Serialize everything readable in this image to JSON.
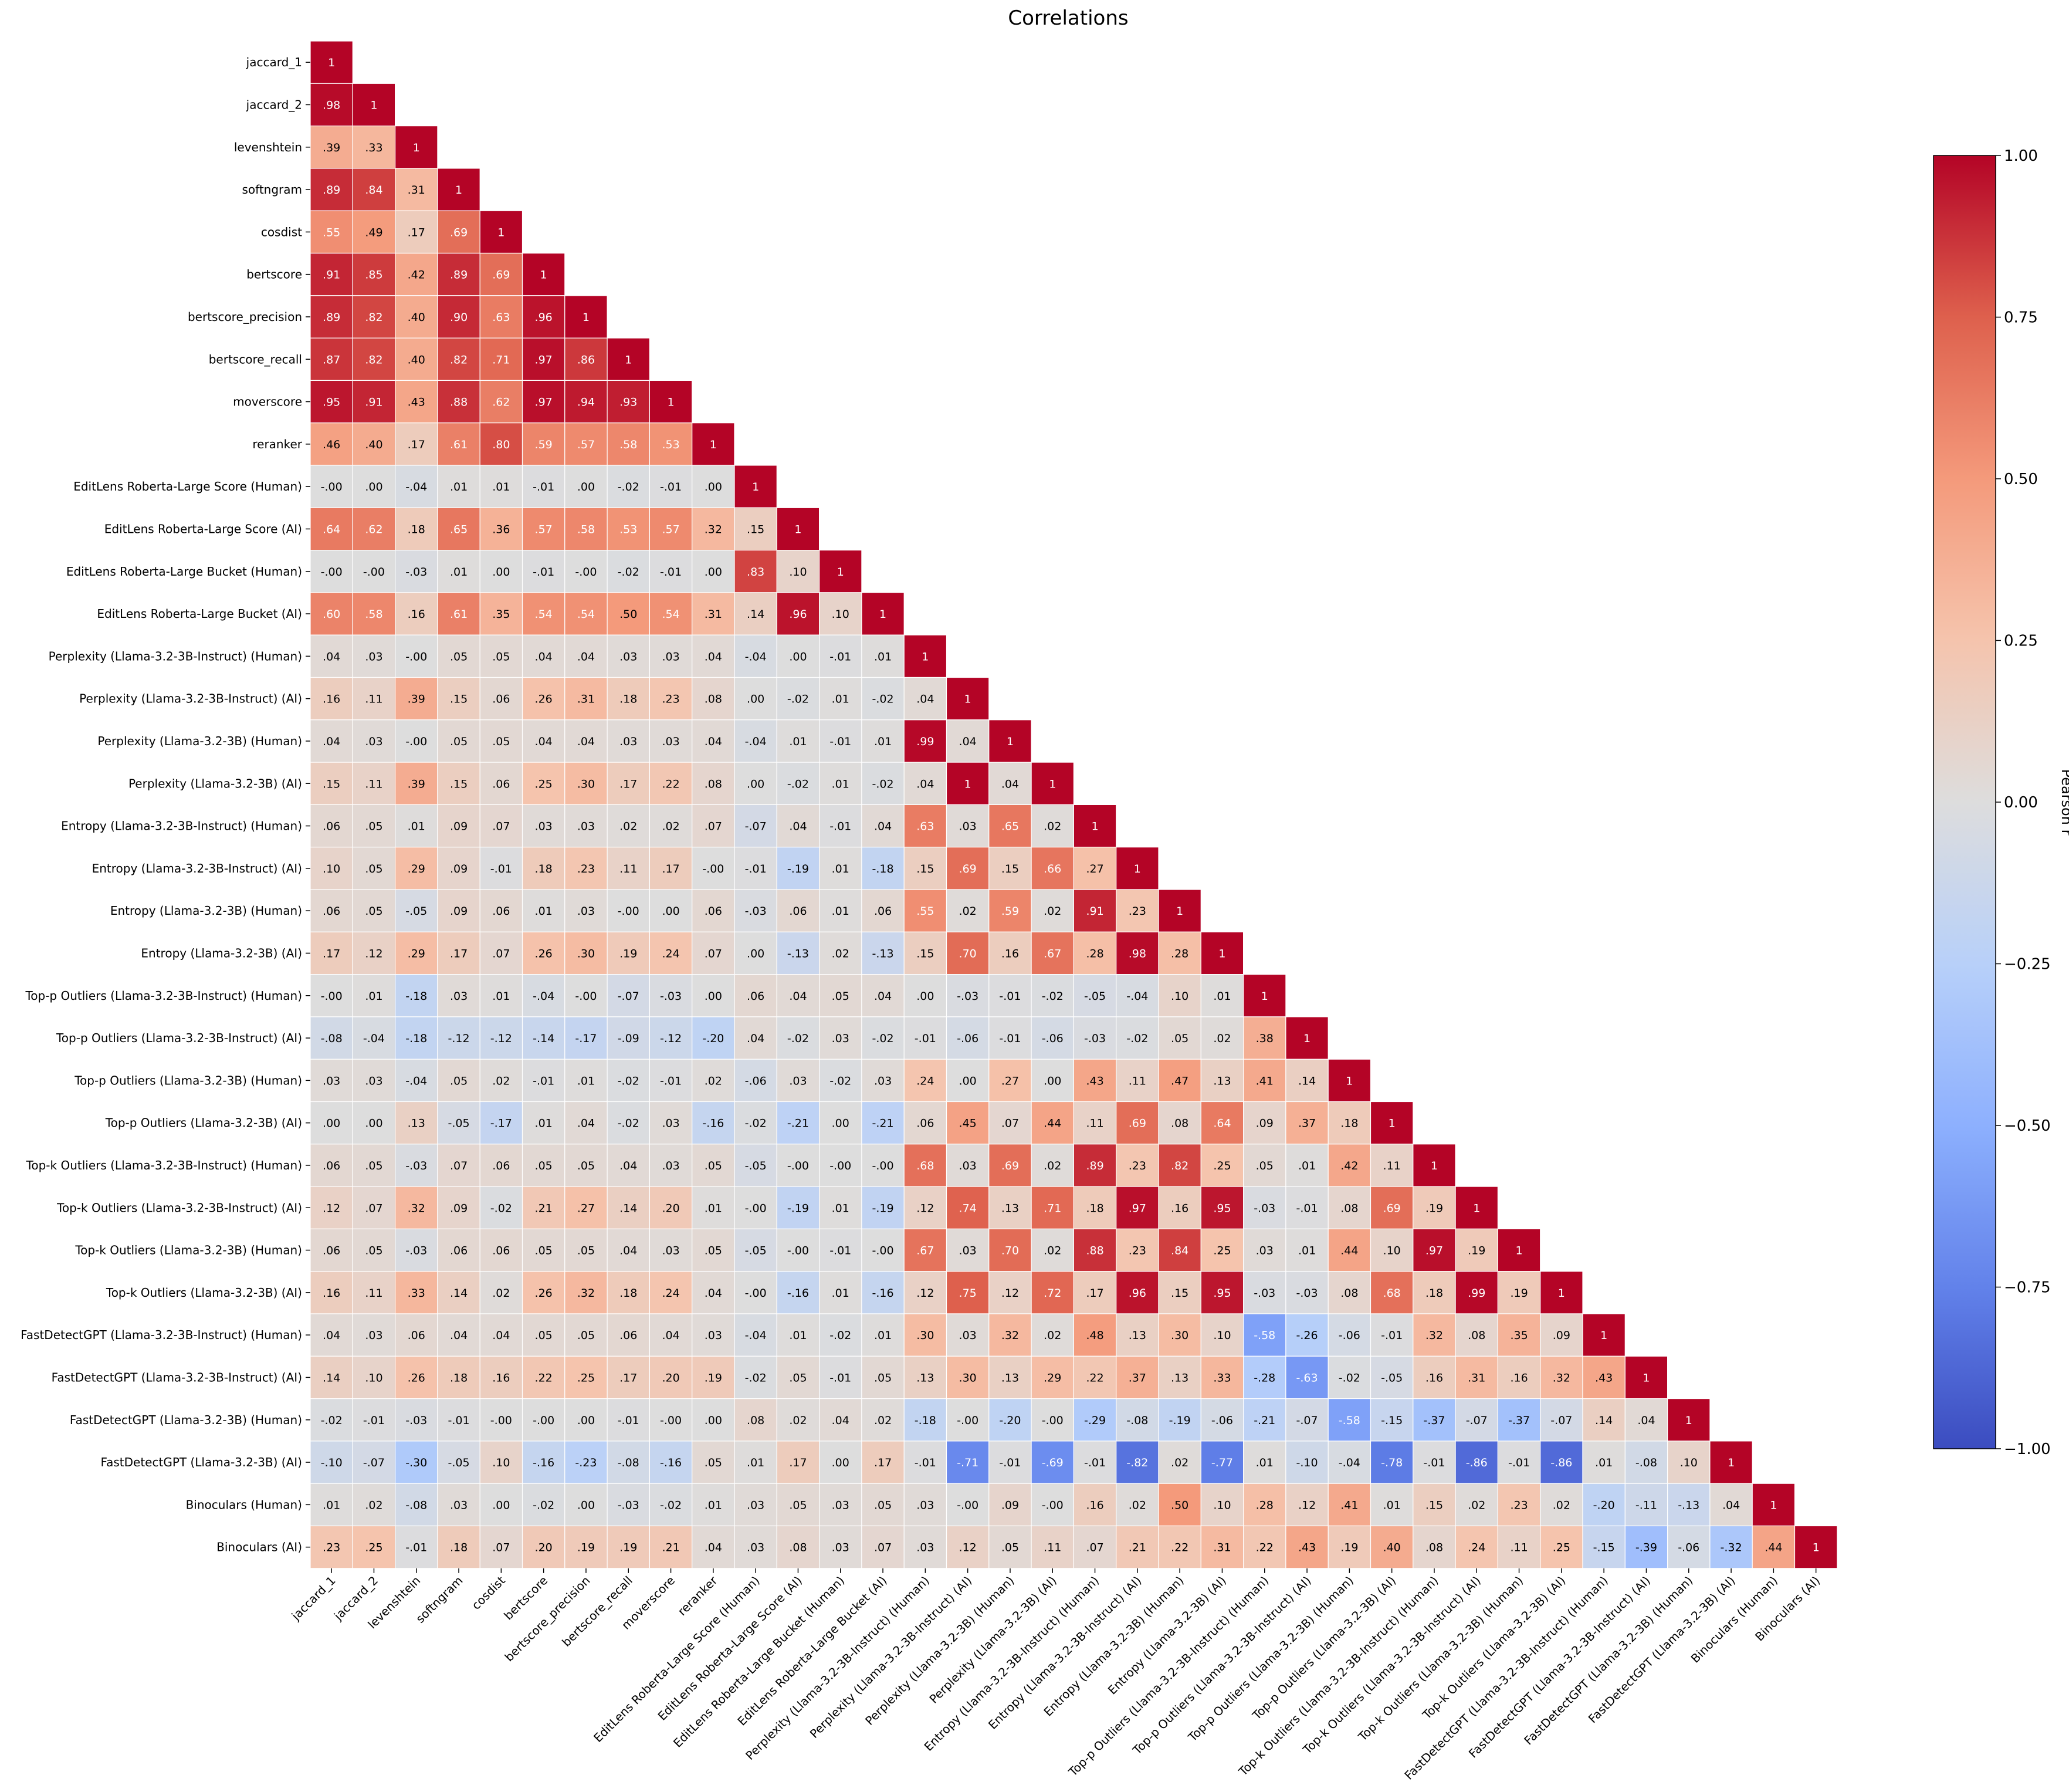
{
  "chart_data": {
    "type": "heatmap",
    "title": "Correlations",
    "colorbar_label": "Pearson r",
    "vmin": -1,
    "vmax": 1,
    "colormap": "coolwarm",
    "colorbar_ticks": [
      "1.00",
      "0.75",
      "0.50",
      "0.25",
      "0.00",
      "−0.25",
      "−0.50",
      "−0.75",
      "−1.00"
    ],
    "colorbar_tick_values": [
      1,
      0.75,
      0.5,
      0.25,
      0,
      -0.25,
      -0.5,
      -0.75,
      -1
    ],
    "mask": "upper triangle above diagonal",
    "labels": [
      "jaccard_1",
      "jaccard_2",
      "levenshtein",
      "softngram",
      "cosdist",
      "bertscore",
      "bertscore_precision",
      "bertscore_recall",
      "moverscore",
      "reranker",
      "EditLens Roberta-Large Score (Human)",
      "EditLens Roberta-Large Score (AI)",
      "EditLens Roberta-Large Bucket (Human)",
      "EditLens Roberta-Large Bucket (AI)",
      "Perplexity (Llama-3.2-3B-Instruct) (Human)",
      "Perplexity (Llama-3.2-3B-Instruct) (AI)",
      "Perplexity (Llama-3.2-3B) (Human)",
      "Perplexity (Llama-3.2-3B) (AI)",
      "Entropy (Llama-3.2-3B-Instruct) (Human)",
      "Entropy (Llama-3.2-3B-Instruct) (AI)",
      "Entropy (Llama-3.2-3B) (Human)",
      "Entropy (Llama-3.2-3B) (AI)",
      "Top-p Outliers (Llama-3.2-3B-Instruct) (Human)",
      "Top-p Outliers (Llama-3.2-3B-Instruct) (AI)",
      "Top-p Outliers (Llama-3.2-3B) (Human)",
      "Top-p Outliers (Llama-3.2-3B) (AI)",
      "Top-k Outliers (Llama-3.2-3B-Instruct) (Human)",
      "Top-k Outliers (Llama-3.2-3B-Instruct) (AI)",
      "Top-k Outliers (Llama-3.2-3B) (Human)",
      "Top-k Outliers (Llama-3.2-3B) (AI)",
      "FastDetectGPT (Llama-3.2-3B-Instruct) (Human)",
      "FastDetectGPT (Llama-3.2-3B-Instruct) (AI)",
      "FastDetectGPT (Llama-3.2-3B) (Human)",
      "FastDetectGPT (Llama-3.2-3B) (AI)",
      "Binoculars (Human)",
      "Binoculars (AI)"
    ],
    "cell_labels": [
      [
        "1"
      ],
      [
        ".98",
        "1"
      ],
      [
        ".39",
        ".33",
        "1"
      ],
      [
        ".89",
        ".84",
        ".31",
        "1"
      ],
      [
        ".55",
        ".49",
        ".17",
        ".69",
        "1"
      ],
      [
        ".91",
        ".85",
        ".42",
        ".89",
        ".69",
        "1"
      ],
      [
        ".89",
        ".82",
        ".40",
        ".90",
        ".63",
        ".96",
        "1"
      ],
      [
        ".87",
        ".82",
        ".40",
        ".82",
        ".71",
        ".97",
        ".86",
        "1"
      ],
      [
        ".95",
        ".91",
        ".43",
        ".88",
        ".62",
        ".97",
        ".94",
        ".93",
        "1"
      ],
      [
        ".46",
        ".40",
        ".17",
        ".61",
        ".80",
        ".59",
        ".57",
        ".58",
        ".53",
        "1"
      ],
      [
        "-.00",
        ".00",
        "-.04",
        ".01",
        ".01",
        "-.01",
        ".00",
        "-.02",
        "-.01",
        ".00",
        "1"
      ],
      [
        ".64",
        ".62",
        ".18",
        ".65",
        ".36",
        ".57",
        ".58",
        ".53",
        ".57",
        ".32",
        ".15",
        "1"
      ],
      [
        "-.00",
        "-.00",
        "-.03",
        ".01",
        ".00",
        "-.01",
        "-.00",
        "-.02",
        "-.01",
        ".00",
        ".83",
        ".10",
        "1"
      ],
      [
        ".60",
        ".58",
        ".16",
        ".61",
        ".35",
        ".54",
        ".54",
        ".50",
        ".54",
        ".31",
        ".14",
        ".96",
        ".10",
        "1"
      ],
      [
        ".04",
        ".03",
        "-.00",
        ".05",
        ".05",
        ".04",
        ".04",
        ".03",
        ".03",
        ".04",
        "-.04",
        ".00",
        "-.01",
        ".01",
        "1"
      ],
      [
        ".16",
        ".11",
        ".39",
        ".15",
        ".06",
        ".26",
        ".31",
        ".18",
        ".23",
        ".08",
        ".00",
        "-.02",
        ".01",
        "-.02",
        ".04",
        "1"
      ],
      [
        ".04",
        ".03",
        "-.00",
        ".05",
        ".05",
        ".04",
        ".04",
        ".03",
        ".03",
        ".04",
        "-.04",
        ".01",
        "-.01",
        ".01",
        ".99",
        ".04",
        "1"
      ],
      [
        ".15",
        ".11",
        ".39",
        ".15",
        ".06",
        ".25",
        ".30",
        ".17",
        ".22",
        ".08",
        ".00",
        "-.02",
        ".01",
        "-.02",
        ".04",
        "1",
        ".04",
        "1"
      ],
      [
        ".06",
        ".05",
        ".01",
        ".09",
        ".07",
        ".03",
        ".03",
        ".02",
        ".02",
        ".07",
        "-.07",
        ".04",
        "-.01",
        ".04",
        ".63",
        ".03",
        ".65",
        ".02",
        "1"
      ],
      [
        ".10",
        ".05",
        ".29",
        ".09",
        "-.01",
        ".18",
        ".23",
        ".11",
        ".17",
        "-.00",
        "-.01",
        "-.19",
        ".01",
        "-.18",
        ".15",
        ".69",
        ".15",
        ".66",
        ".27",
        "1"
      ],
      [
        ".06",
        ".05",
        "-.05",
        ".09",
        ".06",
        ".01",
        ".03",
        "-.00",
        ".00",
        ".06",
        "-.03",
        ".06",
        ".01",
        ".06",
        ".55",
        ".02",
        ".59",
        ".02",
        ".91",
        ".23",
        "1"
      ],
      [
        ".17",
        ".12",
        ".29",
        ".17",
        ".07",
        ".26",
        ".30",
        ".19",
        ".24",
        ".07",
        ".00",
        "-.13",
        ".02",
        "-.13",
        ".15",
        ".70",
        ".16",
        ".67",
        ".28",
        ".98",
        ".28",
        "1"
      ],
      [
        "-.00",
        ".01",
        "-.18",
        ".03",
        ".01",
        "-.04",
        "-.00",
        "-.07",
        "-.03",
        ".00",
        ".06",
        ".04",
        ".05",
        ".04",
        ".00",
        "-.03",
        "-.01",
        "-.02",
        "-.05",
        "-.04",
        ".10",
        ".01",
        "1"
      ],
      [
        "-.08",
        "-.04",
        "-.18",
        "-.12",
        "-.12",
        "-.14",
        "-.17",
        "-.09",
        "-.12",
        "-.20",
        ".04",
        "-.02",
        ".03",
        "-.02",
        "-.01",
        "-.06",
        "-.01",
        "-.06",
        "-.03",
        "-.02",
        ".05",
        ".02",
        ".38",
        "1"
      ],
      [
        ".03",
        ".03",
        "-.04",
        ".05",
        ".02",
        "-.01",
        ".01",
        "-.02",
        "-.01",
        ".02",
        "-.06",
        ".03",
        "-.02",
        ".03",
        ".24",
        ".00",
        ".27",
        ".00",
        ".43",
        ".11",
        ".47",
        ".13",
        ".41",
        ".14",
        "1"
      ],
      [
        ".00",
        ".00",
        ".13",
        "-.05",
        "-.17",
        ".01",
        ".04",
        "-.02",
        ".03",
        "-.16",
        "-.02",
        "-.21",
        ".00",
        "-.21",
        ".06",
        ".45",
        ".07",
        ".44",
        ".11",
        ".69",
        ".08",
        ".64",
        ".09",
        ".37",
        ".18",
        "1"
      ],
      [
        ".06",
        ".05",
        "-.03",
        ".07",
        ".06",
        ".05",
        ".05",
        ".04",
        ".03",
        ".05",
        "-.05",
        "-.00",
        "-.00",
        "-.00",
        ".68",
        ".03",
        ".69",
        ".02",
        ".89",
        ".23",
        ".82",
        ".25",
        ".05",
        ".01",
        ".42",
        ".11",
        "1"
      ],
      [
        ".12",
        ".07",
        ".32",
        ".09",
        "-.02",
        ".21",
        ".27",
        ".14",
        ".20",
        ".01",
        "-.00",
        "-.19",
        ".01",
        "-.19",
        ".12",
        ".74",
        ".13",
        ".71",
        ".18",
        ".97",
        ".16",
        ".95",
        "-.03",
        "-.01",
        ".08",
        ".69",
        ".19",
        "1"
      ],
      [
        ".06",
        ".05",
        "-.03",
        ".06",
        ".06",
        ".05",
        ".05",
        ".04",
        ".03",
        ".05",
        "-.05",
        "-.00",
        "-.01",
        "-.00",
        ".67",
        ".03",
        ".70",
        ".02",
        ".88",
        ".23",
        ".84",
        ".25",
        ".03",
        ".01",
        ".44",
        ".10",
        ".97",
        ".19",
        "1"
      ],
      [
        ".16",
        ".11",
        ".33",
        ".14",
        ".02",
        ".26",
        ".32",
        ".18",
        ".24",
        ".04",
        "-.00",
        "-.16",
        ".01",
        "-.16",
        ".12",
        ".75",
        ".12",
        ".72",
        ".17",
        ".96",
        ".15",
        ".95",
        "-.03",
        "-.03",
        ".08",
        ".68",
        ".18",
        ".99",
        ".19",
        "1"
      ],
      [
        ".04",
        ".03",
        ".06",
        ".04",
        ".04",
        ".05",
        ".05",
        ".06",
        ".04",
        ".03",
        "-.04",
        ".01",
        "-.02",
        ".01",
        ".30",
        ".03",
        ".32",
        ".02",
        ".48",
        ".13",
        ".30",
        ".10",
        "-.58",
        "-.26",
        "-.06",
        "-.01",
        ".32",
        ".08",
        ".35",
        ".09",
        "1"
      ],
      [
        ".14",
        ".10",
        ".26",
        ".18",
        ".16",
        ".22",
        ".25",
        ".17",
        ".20",
        ".19",
        "-.02",
        ".05",
        "-.01",
        ".05",
        ".13",
        ".30",
        ".13",
        ".29",
        ".22",
        ".37",
        ".13",
        ".33",
        "-.28",
        "-.63",
        "-.02",
        "-.05",
        ".16",
        ".31",
        ".16",
        ".32",
        ".43",
        "1"
      ],
      [
        "-.02",
        "-.01",
        "-.03",
        "-.01",
        "-.00",
        "-.00",
        ".00",
        "-.01",
        "-.00",
        ".00",
        ".08",
        ".02",
        ".04",
        ".02",
        "-.18",
        "-.00",
        "-.20",
        "-.00",
        "-.29",
        "-.08",
        "-.19",
        "-.06",
        "-.21",
        "-.07",
        "-.58",
        "-.15",
        "-.37",
        "-.07",
        "-.37",
        "-.07",
        ".14",
        ".04",
        "1"
      ],
      [
        "-.10",
        "-.07",
        "-.30",
        "-.05",
        ".10",
        "-.16",
        "-.23",
        "-.08",
        "-.16",
        ".05",
        ".01",
        ".17",
        ".00",
        ".17",
        "-.01",
        "-.71",
        "-.01",
        "-.69",
        "-.01",
        "-.82",
        ".02",
        "-.77",
        ".01",
        "-.10",
        "-.04",
        "-.78",
        "-.01",
        "-.86",
        "-.01",
        "-.86",
        ".01",
        "-.08",
        ".10",
        "1"
      ],
      [
        ".01",
        ".02",
        "-.08",
        ".03",
        ".00",
        "-.02",
        ".00",
        "-.03",
        "-.02",
        ".01",
        ".03",
        ".05",
        ".03",
        ".05",
        ".03",
        "-.00",
        ".09",
        "-.00",
        ".16",
        ".02",
        ".50",
        ".10",
        ".28",
        ".12",
        ".41",
        ".01",
        ".15",
        ".02",
        ".23",
        ".02",
        "-.20",
        "-.11",
        "-.13",
        ".04",
        "1"
      ],
      [
        ".23",
        ".25",
        "-.01",
        ".18",
        ".07",
        ".20",
        ".19",
        ".19",
        ".21",
        ".04",
        ".03",
        ".08",
        ".03",
        ".07",
        ".03",
        ".12",
        ".05",
        ".11",
        ".07",
        ".21",
        ".22",
        ".31",
        ".22",
        ".43",
        ".19",
        ".40",
        ".08",
        ".24",
        ".11",
        ".25",
        "-.15",
        "-.39",
        "-.06",
        "-.32",
        ".44",
        "1"
      ]
    ]
  }
}
